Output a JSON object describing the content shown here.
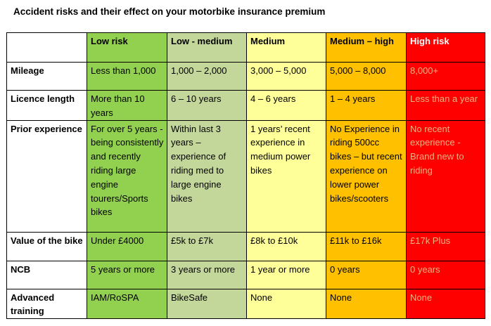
{
  "title": "Accident risks and their effect on your motorbike insurance premium",
  "columns": [
    "Low risk",
    "Low - medium",
    "Medium",
    "Medium – high",
    "High risk"
  ],
  "rows": [
    {
      "label": "Mileage",
      "cells": [
        "Less than 1,000",
        "1,000 – 2,000",
        "3,000 – 5,000",
        "5,000 – 8,000",
        "8,000+"
      ]
    },
    {
      "label": "Licence length",
      "cells": [
        "More than 10 years",
        "6 – 10 years",
        "4 – 6 years",
        "1 – 4 years",
        "Less than a year"
      ]
    },
    {
      "label": "Prior experience",
      "cells": [
        "For over 5 years - being consistently and recently riding large engine tourers/Sports bikes",
        "Within last 3 years – experience of riding med to large engine bikes",
        "1 years’ recent experience in medium power bikes",
        "No Experience in riding 500cc bikes – but recent experience on lower power bikes/scooters",
        "No recent experience - Brand new to riding"
      ]
    },
    {
      "label": "Value of the bike",
      "cells": [
        "Under £4000",
        "£5k to £7k",
        "£8k to £10k",
        "£11k to £16k",
        "£17k Plus"
      ]
    },
    {
      "label": "NCB",
      "cells": [
        "5 years or more",
        "3 years or more",
        "1 year or more",
        "0 years",
        "0 years"
      ]
    },
    {
      "label": "Advanced training",
      "cells": [
        "IAM/RoSPA",
        "BikeSafe",
        "None",
        "None",
        "None"
      ]
    }
  ],
  "colors": {
    "low": "#92d050",
    "low_medium": "#c4d79b",
    "medium": "#ffff99",
    "medium_high": "#ffc000",
    "high": "#ff0000",
    "high_text": "#f4b083"
  }
}
